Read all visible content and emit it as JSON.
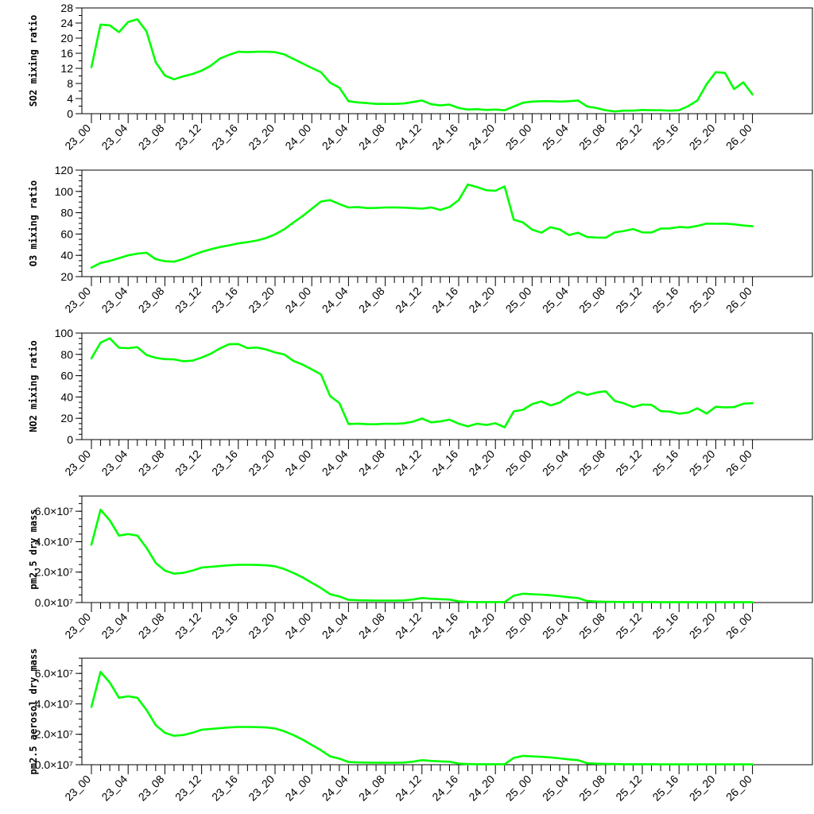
{
  "chart_data": [
    {
      "type": "line",
      "title": "",
      "xlabel": "",
      "ylabel": "SO2 mixing ratio",
      "ylim": [
        0,
        28
      ],
      "yticks": [
        "0",
        "4",
        "8",
        "12",
        "16",
        "20",
        "24",
        "28"
      ],
      "ytick_values": [
        0,
        4,
        8,
        12,
        16,
        20,
        24,
        28
      ],
      "yminor": 2,
      "xtick_labels": [
        "23_00",
        "23_04",
        "23_08",
        "23_12",
        "23_16",
        "23_20",
        "24_00",
        "24_04",
        "24_08",
        "24_12",
        "24_16",
        "24_20",
        "25_00",
        "25_04",
        "25_08",
        "25_12",
        "25_16",
        "25_20",
        "26_00"
      ],
      "grid": false,
      "series": [
        {
          "color": "#00ff00",
          "values": [
            12.3,
            23.6,
            23.4,
            21.6,
            24.3,
            25.0,
            21.8,
            13.6,
            10.1,
            9.1,
            9.9,
            10.5,
            11.4,
            12.7,
            14.6,
            15.6,
            16.4,
            16.3,
            16.4,
            16.4,
            16.3,
            15.7,
            14.5,
            13.3,
            12.1,
            11.0,
            8.2,
            6.9,
            3.3,
            3.0,
            2.8,
            2.6,
            2.6,
            2.6,
            2.7,
            3.1,
            3.5,
            2.5,
            2.2,
            2.4,
            1.5,
            1.1,
            1.2,
            1.0,
            1.1,
            0.9,
            1.9,
            2.9,
            3.2,
            3.3,
            3.3,
            3.2,
            3.3,
            3.5,
            1.9,
            1.5,
            0.9,
            0.6,
            0.8,
            0.8,
            1.0,
            0.9,
            0.9,
            0.8,
            0.9,
            2.0,
            3.5,
            7.8,
            11.0,
            10.8,
            6.5,
            8.3,
            5.1
          ]
        }
      ]
    },
    {
      "type": "line",
      "title": "",
      "xlabel": "",
      "ylabel": "O3 mixing ratio",
      "ylim": [
        20,
        120
      ],
      "yticks": [
        "20",
        "40",
        "60",
        "80",
        "100",
        "120"
      ],
      "ytick_values": [
        20,
        40,
        60,
        80,
        100,
        120
      ],
      "yminor": 4,
      "xtick_labels": [
        "23_00",
        "23_04",
        "23_08",
        "23_12",
        "23_16",
        "23_20",
        "24_00",
        "24_04",
        "24_08",
        "24_12",
        "24_16",
        "24_20",
        "25_00",
        "25_04",
        "25_08",
        "25_12",
        "25_16",
        "25_20",
        "26_00"
      ],
      "grid": false,
      "series": [
        {
          "color": "#00ff00",
          "values": [
            28.5,
            32.8,
            34.8,
            37.4,
            40.0,
            41.6,
            42.4,
            36.4,
            34.5,
            34.0,
            36.6,
            40.0,
            43.2,
            45.7,
            47.8,
            49.4,
            51.2,
            52.4,
            53.9,
            56.2,
            59.7,
            64.5,
            70.8,
            76.9,
            83.7,
            90.5,
            91.9,
            88.1,
            84.9,
            85.4,
            84.4,
            84.5,
            84.9,
            85.0,
            84.8,
            84.3,
            83.9,
            85.0,
            82.6,
            85.4,
            91.8,
            106.5,
            104.0,
            101.1,
            100.6,
            104.7,
            73.4,
            70.9,
            64.1,
            61.3,
            66.4,
            64.3,
            59.0,
            61.2,
            57.2,
            56.7,
            56.5,
            61.5,
            62.8,
            64.7,
            61.6,
            61.4,
            65.1,
            65.3,
            66.6,
            66.1,
            67.6,
            69.8,
            69.6,
            69.8,
            69.1,
            68.0,
            67.3
          ]
        }
      ]
    },
    {
      "type": "line",
      "title": "",
      "xlabel": "",
      "ylabel": "NO2 mixing ratio",
      "ylim": [
        0,
        100
      ],
      "yticks": [
        "0",
        "20",
        "40",
        "60",
        "80",
        "100"
      ],
      "ytick_values": [
        0,
        20,
        40,
        60,
        80,
        100
      ],
      "yminor": 4,
      "xtick_labels": [
        "23_00",
        "23_04",
        "23_08",
        "23_12",
        "23_16",
        "23_20",
        "24_00",
        "24_04",
        "24_08",
        "24_12",
        "24_16",
        "24_20",
        "25_00",
        "25_04",
        "25_08",
        "25_12",
        "25_16",
        "25_20",
        "26_00"
      ],
      "grid": false,
      "series": [
        {
          "color": "#00ff00",
          "values": [
            76.3,
            91.0,
            95.1,
            86.2,
            85.8,
            86.8,
            79.5,
            76.8,
            75.5,
            75.3,
            73.6,
            74.1,
            77.0,
            80.6,
            85.6,
            89.6,
            89.7,
            85.9,
            86.4,
            84.7,
            81.8,
            79.9,
            73.9,
            70.4,
            66.0,
            61.2,
            40.8,
            34.3,
            14.6,
            15.0,
            14.5,
            14.4,
            14.9,
            14.8,
            15.2,
            16.8,
            19.8,
            16.2,
            17.1,
            18.7,
            15.0,
            12.4,
            14.9,
            13.7,
            15.4,
            11.6,
            26.5,
            28.0,
            33.3,
            35.8,
            32.1,
            34.8,
            40.6,
            44.8,
            42.0,
            44.2,
            45.4,
            36.3,
            34.0,
            30.5,
            32.9,
            32.6,
            26.7,
            26.3,
            24.3,
            25.4,
            29.4,
            24.4,
            30.8,
            30.2,
            30.5,
            33.7,
            34.2
          ]
        }
      ]
    },
    {
      "type": "line",
      "title": "",
      "xlabel": "",
      "ylabel": "pm2.5 dry mass",
      "ylim": [
        0,
        7
      ],
      "yticks": [
        "0.0×10⁷",
        "2.0×10⁷",
        "4.0×10⁷",
        "6.0×10⁷"
      ],
      "ytick_values": [
        0,
        2,
        4,
        6
      ],
      "yminor": 4,
      "xtick_labels": [
        "23_00",
        "23_04",
        "23_08",
        "23_12",
        "23_16",
        "23_20",
        "24_00",
        "24_04",
        "24_08",
        "24_12",
        "24_16",
        "24_20",
        "25_00",
        "25_04",
        "25_08",
        "25_12",
        "25_16",
        "25_20",
        "26_00"
      ],
      "grid": false,
      "series": [
        {
          "color": "#00ff00",
          "values": [
            3.8,
            6.1,
            5.4,
            4.4,
            4.5,
            4.4,
            3.6,
            2.6,
            2.1,
            1.9,
            1.95,
            2.1,
            2.3,
            2.35,
            2.4,
            2.45,
            2.48,
            2.48,
            2.47,
            2.45,
            2.38,
            2.2,
            1.95,
            1.65,
            1.3,
            0.95,
            0.55,
            0.4,
            0.18,
            0.15,
            0.14,
            0.13,
            0.13,
            0.13,
            0.14,
            0.2,
            0.3,
            0.25,
            0.22,
            0.2,
            0.08,
            0.04,
            0.03,
            0.03,
            0.03,
            0.03,
            0.45,
            0.58,
            0.55,
            0.52,
            0.48,
            0.42,
            0.35,
            0.3,
            0.1,
            0.07,
            0.05,
            0.04,
            0.03,
            0.03,
            0.03,
            0.03,
            0.02,
            0.02,
            0.02,
            0.02,
            0.02,
            0.02,
            0.02,
            0.02,
            0.02,
            0.02,
            0.02
          ]
        }
      ]
    },
    {
      "type": "line",
      "title": "",
      "xlabel": "",
      "ylabel": "pm2.5 aerosol dry mass",
      "ylim": [
        0,
        7
      ],
      "yticks": [
        "0.0×10⁷",
        "2.0×10⁷",
        "4.0×10⁷",
        "6.0×10⁷"
      ],
      "ytick_values": [
        0,
        2,
        4,
        6
      ],
      "yminor": 4,
      "xtick_labels": [
        "23_00",
        "23_04",
        "23_08",
        "23_12",
        "23_16",
        "23_20",
        "24_00",
        "24_04",
        "24_08",
        "24_12",
        "24_16",
        "24_20",
        "25_00",
        "25_04",
        "25_08",
        "25_12",
        "25_16",
        "25_20",
        "26_00"
      ],
      "grid": false,
      "series": [
        {
          "color": "#00ff00",
          "values": [
            3.8,
            6.1,
            5.4,
            4.4,
            4.5,
            4.4,
            3.6,
            2.6,
            2.1,
            1.9,
            1.95,
            2.1,
            2.3,
            2.35,
            2.4,
            2.45,
            2.48,
            2.48,
            2.47,
            2.45,
            2.38,
            2.2,
            1.95,
            1.65,
            1.3,
            0.95,
            0.55,
            0.4,
            0.18,
            0.15,
            0.14,
            0.13,
            0.13,
            0.13,
            0.14,
            0.2,
            0.3,
            0.25,
            0.22,
            0.2,
            0.08,
            0.04,
            0.03,
            0.03,
            0.03,
            0.03,
            0.45,
            0.58,
            0.55,
            0.52,
            0.48,
            0.42,
            0.35,
            0.3,
            0.1,
            0.07,
            0.05,
            0.04,
            0.03,
            0.03,
            0.03,
            0.03,
            0.02,
            0.02,
            0.02,
            0.02,
            0.02,
            0.02,
            0.02,
            0.02,
            0.02,
            0.02,
            0.02
          ]
        }
      ]
    }
  ]
}
